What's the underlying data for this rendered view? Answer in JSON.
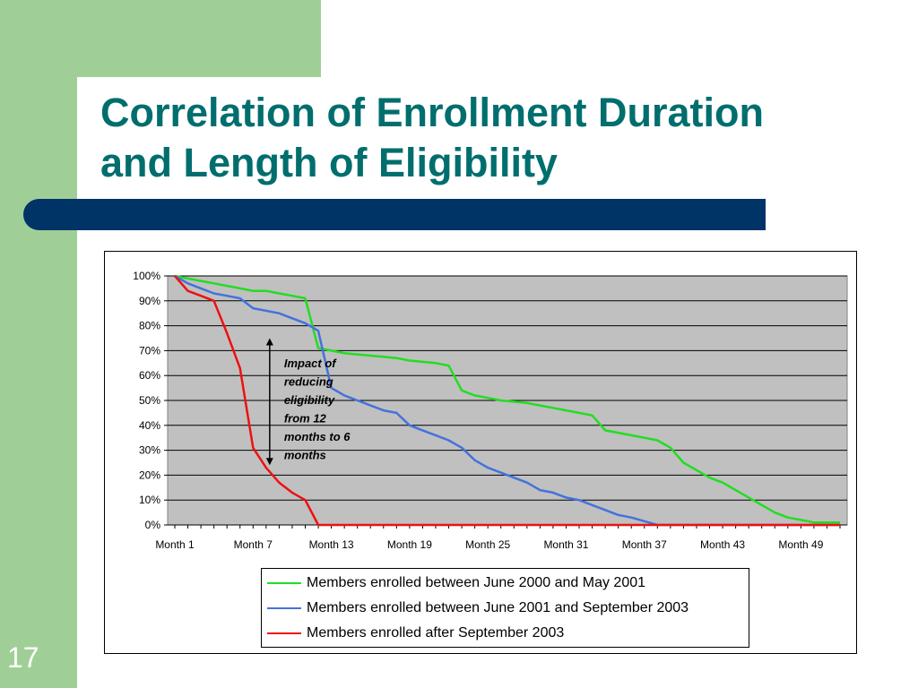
{
  "slide": {
    "title_line1": "Correlation of Enrollment Duration",
    "title_line2": "and Length of Eligibility",
    "slide_number": "17"
  },
  "colors": {
    "green_accent": "#9fcf97",
    "title_teal": "#006e6e",
    "bar_navy": "#003366",
    "plot_bg": "#c0c0c0"
  },
  "chart_data": {
    "type": "line",
    "x": [
      "Month 1",
      "Month 2",
      "Month 3",
      "Month 4",
      "Month 5",
      "Month 6",
      "Month 7",
      "Month 8",
      "Month 9",
      "Month 10",
      "Month 11",
      "Month 12",
      "Month 13",
      "Month 14",
      "Month 15",
      "Month 16",
      "Month 17",
      "Month 18",
      "Month 19",
      "Month 20",
      "Month 21",
      "Month 22",
      "Month 23",
      "Month 24",
      "Month 25",
      "Month 26",
      "Month 27",
      "Month 28",
      "Month 29",
      "Month 30",
      "Month 31",
      "Month 32",
      "Month 33",
      "Month 34",
      "Month 35",
      "Month 36",
      "Month 37",
      "Month 38",
      "Month 39",
      "Month 40",
      "Month 41",
      "Month 42",
      "Month 43",
      "Month 44",
      "Month 45",
      "Month 46",
      "Month 47",
      "Month 48",
      "Month 49",
      "Month 50",
      "Month 51",
      "Month 52"
    ],
    "x_tick_labels": [
      "Month 1",
      "Month 7",
      "Month 13",
      "Month 19",
      "Month 25",
      "Month 31",
      "Month 37",
      "Month 43",
      "Month 49"
    ],
    "y_tick_labels": [
      "0%",
      "10%",
      "20%",
      "30%",
      "40%",
      "50%",
      "60%",
      "70%",
      "80%",
      "90%",
      "100%"
    ],
    "ylim": [
      0,
      100
    ],
    "grid": true,
    "legend_position": "bottom",
    "series": [
      {
        "name": "Members enrolled between June 2000 and May 2001",
        "color": "#22dd22",
        "values": [
          100,
          99,
          98,
          97,
          96,
          95,
          94,
          94,
          93,
          92,
          91,
          71,
          70,
          69,
          68.5,
          68,
          67.5,
          67,
          66,
          65.5,
          65,
          64,
          54,
          52,
          51,
          50,
          49.5,
          49,
          48,
          47,
          46,
          45,
          44,
          38,
          37,
          36,
          35,
          34,
          31,
          25,
          22,
          19,
          17,
          14,
          11,
          8,
          5,
          3,
          2,
          1,
          1,
          1
        ]
      },
      {
        "name": "Members enrolled between June 2001 and September 2003",
        "color": "#4472dd",
        "values": [
          100,
          97,
          95,
          93,
          92,
          91,
          87,
          86,
          85,
          83,
          81,
          78,
          55,
          52,
          50,
          48,
          46,
          45,
          40,
          38,
          36,
          34,
          31,
          26,
          23,
          21,
          19,
          17,
          14,
          13,
          11,
          10,
          8,
          6,
          4,
          3,
          1.5,
          0,
          0,
          0,
          0,
          0,
          0,
          0,
          0,
          0,
          0,
          0,
          0,
          0,
          0,
          0
        ]
      },
      {
        "name": "Members enrolled after September 2003",
        "color": "#ee1111",
        "values": [
          100,
          94,
          92,
          90,
          77,
          63,
          31,
          23,
          17,
          13,
          10,
          0,
          0,
          0,
          0,
          0,
          0,
          0,
          0,
          0,
          0,
          0,
          0,
          0,
          0,
          0,
          0,
          0,
          0,
          0,
          0,
          0,
          0,
          0,
          0,
          0,
          0,
          0,
          0,
          0,
          0,
          0,
          0,
          0,
          0,
          0,
          0,
          0,
          0,
          0,
          0,
          0
        ]
      }
    ],
    "annotation": {
      "lines": [
        "Impact of",
        "reducing",
        "eligibility",
        "from 12",
        "months to 6",
        "months"
      ],
      "arrow_from": 75,
      "arrow_to": 24,
      "arrow_x_category": "Month 8"
    }
  }
}
